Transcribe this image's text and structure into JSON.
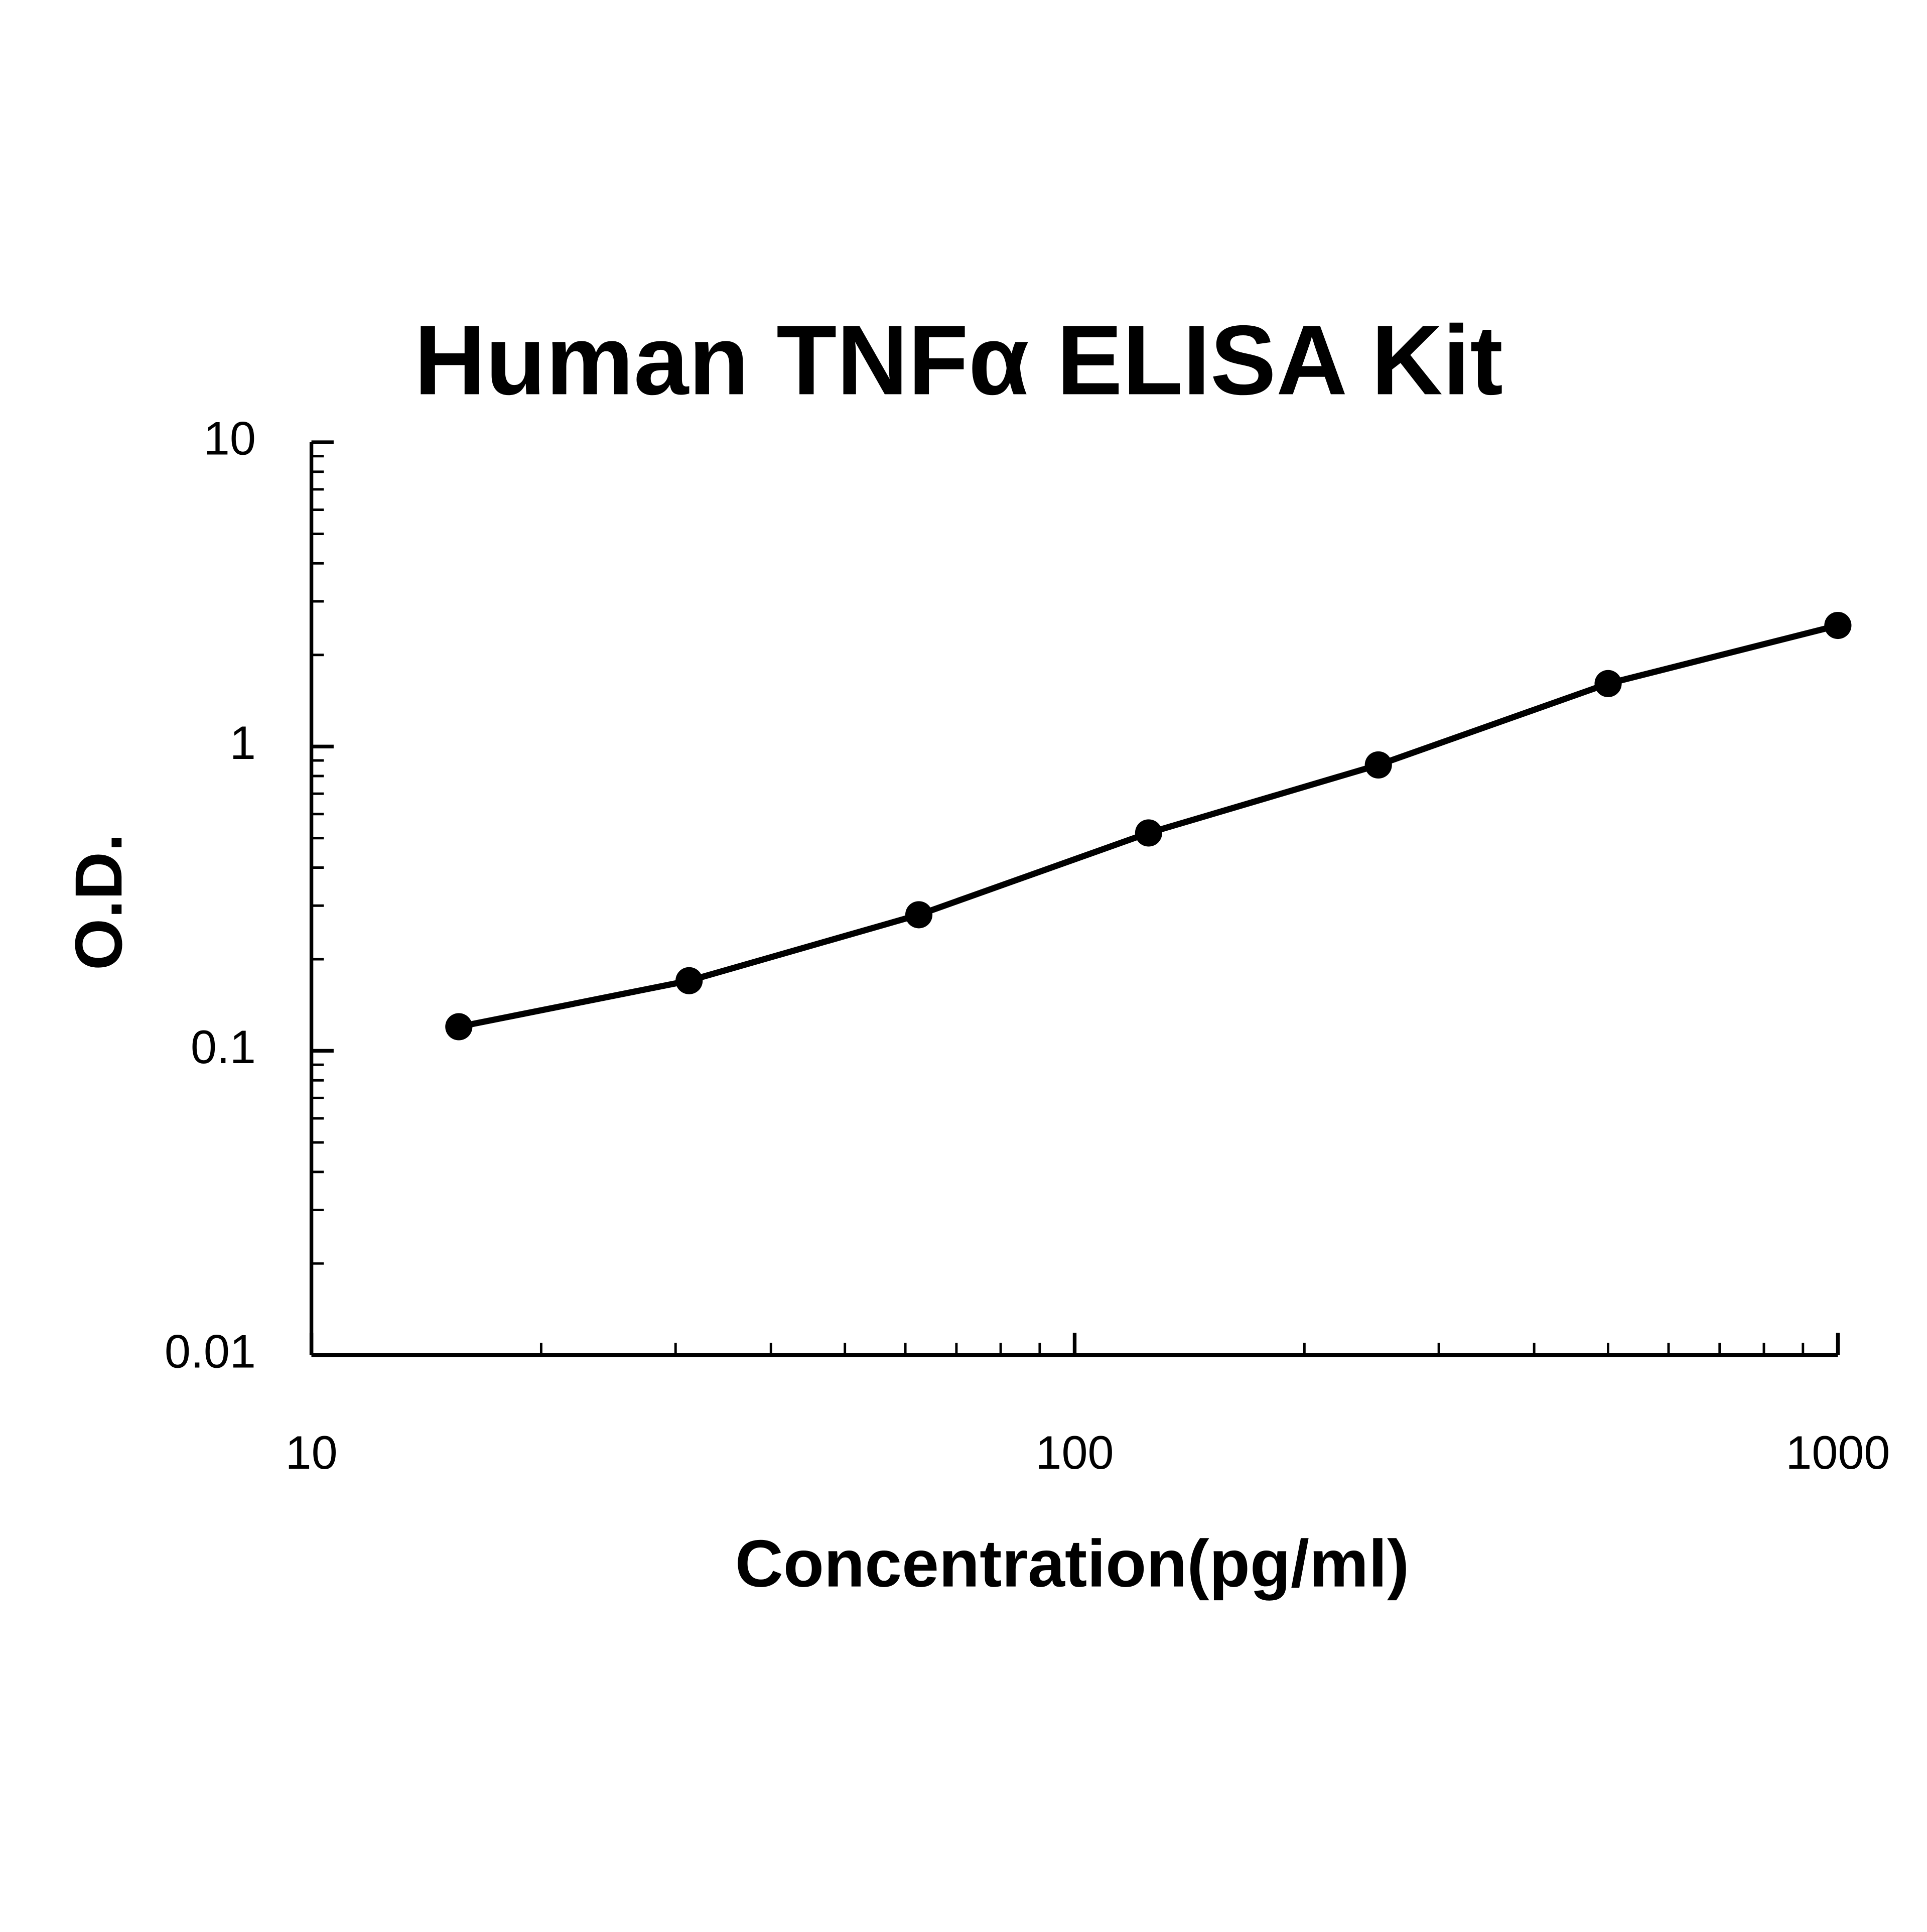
{
  "chart_data": {
    "type": "line",
    "title": "Human TNFα ELISA Kit",
    "x_label": "Concentration(pg/ml)",
    "y_label": "O.D.",
    "x": [
      15.6,
      31.25,
      62.5,
      125,
      250,
      500,
      1000
    ],
    "series": [
      {
        "color": "#000000",
        "values": [
          0.12,
          0.17,
          0.28,
          0.52,
          0.87,
          1.61,
          2.5
        ]
      }
    ],
    "xlim": [
      10,
      1000
    ],
    "ylim": [
      0.01,
      10
    ],
    "xticks": [
      10,
      100,
      1000
    ],
    "yticks": [
      0.01,
      0.1,
      1,
      10
    ],
    "xscale": "log",
    "yscale": "log",
    "grid": false,
    "markers": true
  }
}
